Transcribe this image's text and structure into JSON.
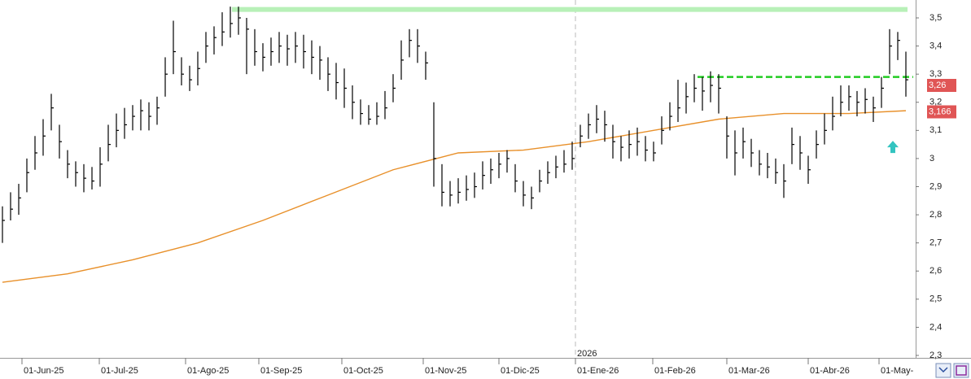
{
  "chart_data": {
    "type": "ohlc",
    "high": [
      2.83,
      2.88,
      2.91,
      3.0,
      3.08,
      3.14,
      3.23,
      3.12,
      3.03,
      2.99,
      2.98,
      2.97,
      3.04,
      3.12,
      3.16,
      3.18,
      3.19,
      3.21,
      3.2,
      3.22,
      3.36,
      3.49,
      3.36,
      3.33,
      3.38,
      3.45,
      3.47,
      3.52,
      3.54,
      3.54,
      3.5,
      3.46,
      3.41,
      3.43,
      3.45,
      3.44,
      3.45,
      3.44,
      3.42,
      3.4,
      3.36,
      3.34,
      3.32,
      3.26,
      3.21,
      3.19,
      3.2,
      3.24,
      3.3,
      3.42,
      3.46,
      3.46,
      3.38,
      3.2,
      2.98,
      2.92,
      2.93,
      2.94,
      2.95,
      2.99,
      3.0,
      3.02,
      3.03,
      2.98,
      2.92,
      2.9,
      2.96,
      2.99,
      3.01,
      3.03,
      3.06,
      3.12,
      3.16,
      3.19,
      3.17,
      3.12,
      3.08,
      3.1,
      3.11,
      3.08,
      3.06,
      3.15,
      3.2,
      3.28,
      3.27,
      3.3,
      3.29,
      3.31,
      3.3,
      3.15,
      3.1,
      3.11,
      3.07,
      3.03,
      3.02,
      3.0,
      2.98,
      3.11,
      3.08,
      3.01,
      3.1,
      3.16,
      3.22,
      3.26,
      3.26,
      3.24,
      3.25,
      3.22,
      3.29,
      3.46,
      3.45,
      3.38
    ],
    "low": [
      2.7,
      2.78,
      2.8,
      2.88,
      2.96,
      3.01,
      3.1,
      3.0,
      2.93,
      2.9,
      2.88,
      2.89,
      2.9,
      2.99,
      3.04,
      3.07,
      3.1,
      3.1,
      3.1,
      3.12,
      3.22,
      3.3,
      3.26,
      3.24,
      3.26,
      3.34,
      3.37,
      3.4,
      3.43,
      3.44,
      3.3,
      3.33,
      3.31,
      3.33,
      3.34,
      3.33,
      3.34,
      3.32,
      3.3,
      3.28,
      3.24,
      3.21,
      3.18,
      3.14,
      3.12,
      3.12,
      3.12,
      3.14,
      3.2,
      3.28,
      3.36,
      3.34,
      3.28,
      2.9,
      2.83,
      2.83,
      2.84,
      2.85,
      2.86,
      2.89,
      2.91,
      2.93,
      2.95,
      2.88,
      2.83,
      2.82,
      2.88,
      2.91,
      2.93,
      2.95,
      2.96,
      3.04,
      3.07,
      3.09,
      3.06,
      3.0,
      2.99,
      3.0,
      3.01,
      2.99,
      2.99,
      3.05,
      3.1,
      3.13,
      3.16,
      3.2,
      3.17,
      3.2,
      3.16,
      3.0,
      2.94,
      3.0,
      2.97,
      2.94,
      2.93,
      2.91,
      2.86,
      2.98,
      2.96,
      2.91,
      3.0,
      3.05,
      3.1,
      3.15,
      3.17,
      3.15,
      3.16,
      3.13,
      3.18,
      3.3,
      3.35,
      3.22
    ],
    "close": [
      2.78,
      2.82,
      2.86,
      2.95,
      3.02,
      3.08,
      3.18,
      3.06,
      2.98,
      2.95,
      2.93,
      2.92,
      2.98,
      3.05,
      3.1,
      3.12,
      3.15,
      3.17,
      3.15,
      3.18,
      3.3,
      3.38,
      3.3,
      3.28,
      3.32,
      3.4,
      3.43,
      3.45,
      3.48,
      3.5,
      3.46,
      3.38,
      3.36,
      3.38,
      3.4,
      3.39,
      3.4,
      3.38,
      3.36,
      3.35,
      3.3,
      3.27,
      3.25,
      3.2,
      3.16,
      3.14,
      3.15,
      3.18,
      3.25,
      3.35,
      3.42,
      3.4,
      3.34,
      3.0,
      2.88,
      2.87,
      2.88,
      2.89,
      2.9,
      2.94,
      2.96,
      2.98,
      3.0,
      2.92,
      2.87,
      2.86,
      2.92,
      2.95,
      2.97,
      2.98,
      3.0,
      3.08,
      3.12,
      3.14,
      3.12,
      3.06,
      3.04,
      3.05,
      3.06,
      3.03,
      3.02,
      3.1,
      3.15,
      3.18,
      3.22,
      3.25,
      3.24,
      3.26,
      3.25,
      3.08,
      3.02,
      3.06,
      3.02,
      2.98,
      2.97,
      2.95,
      2.92,
      3.05,
      3.02,
      2.96,
      3.05,
      3.1,
      3.15,
      3.2,
      3.22,
      3.2,
      3.21,
      3.18,
      3.25,
      3.4,
      3.42,
      3.28
    ],
    "color": "#000000",
    "moving_average": {
      "color": "#e8902a",
      "x": [
        0,
        8,
        16,
        24,
        32,
        40,
        48,
        56,
        64,
        72,
        80,
        88,
        96,
        104,
        111
      ],
      "values": [
        2.56,
        2.59,
        2.64,
        2.7,
        2.78,
        2.87,
        2.96,
        3.02,
        3.03,
        3.06,
        3.1,
        3.14,
        3.16,
        3.16,
        3.17
      ]
    },
    "levels": [
      {
        "value": 3.53,
        "x": [
          28.2,
          111.2
        ],
        "color": "#b8f0b8",
        "dash": false
      },
      {
        "value": 3.29,
        "x": [
          85.4,
          111.9
        ],
        "color": "#22cc22",
        "dash": true
      }
    ],
    "price_labels": [
      {
        "value": 3.26,
        "label": "3,26",
        "color": "#e05555"
      },
      {
        "value": 3.166,
        "label": "3,166",
        "color": "#e05555"
      }
    ],
    "arrow": {
      "x": 109.4,
      "y": 3.04,
      "color": "#33c4c0"
    },
    "year_marker": {
      "x": 70.4,
      "label": "2026"
    },
    "xlim": [
      -0.3,
      112.2
    ],
    "xticks": [
      {
        "value": 2.4,
        "label": "01-Jun-25"
      },
      {
        "value": 11.9,
        "label": "01-Jul-25"
      },
      {
        "value": 22.5,
        "label": "01-Ago-25"
      },
      {
        "value": 31.5,
        "label": "01-Sep-25"
      },
      {
        "value": 41.7,
        "label": "01-Oct-25"
      },
      {
        "value": 51.7,
        "label": "01-Nov-25"
      },
      {
        "value": 61,
        "label": "01-Dic-25"
      },
      {
        "value": 70.4,
        "label": "01-Ene-26"
      },
      {
        "value": 79.9,
        "label": "01-Feb-26"
      },
      {
        "value": 89,
        "label": "01-Mar-26"
      },
      {
        "value": 99,
        "label": "01-Abr-26"
      },
      {
        "value": 107.7,
        "label": "01-May-"
      }
    ],
    "ylim": [
      2.3,
      3.5
    ],
    "yticks": [
      {
        "value": 2.3,
        "label": "2,3"
      },
      {
        "value": 2.4,
        "label": "2,4"
      },
      {
        "value": 2.5,
        "label": "2,5"
      },
      {
        "value": 2.6,
        "label": "2,6"
      },
      {
        "value": 2.7,
        "label": "2,7"
      },
      {
        "value": 2.8,
        "label": "2,8"
      },
      {
        "value": 2.9,
        "label": "2,9"
      },
      {
        "value": 3,
        "label": "3"
      },
      {
        "value": 3.1,
        "label": "3,1"
      },
      {
        "value": 3.2,
        "label": "3,2"
      },
      {
        "value": 3.3,
        "label": "3,3"
      },
      {
        "value": 3.4,
        "label": "3,4"
      },
      {
        "value": 3.5,
        "label": "3,5"
      }
    ]
  }
}
